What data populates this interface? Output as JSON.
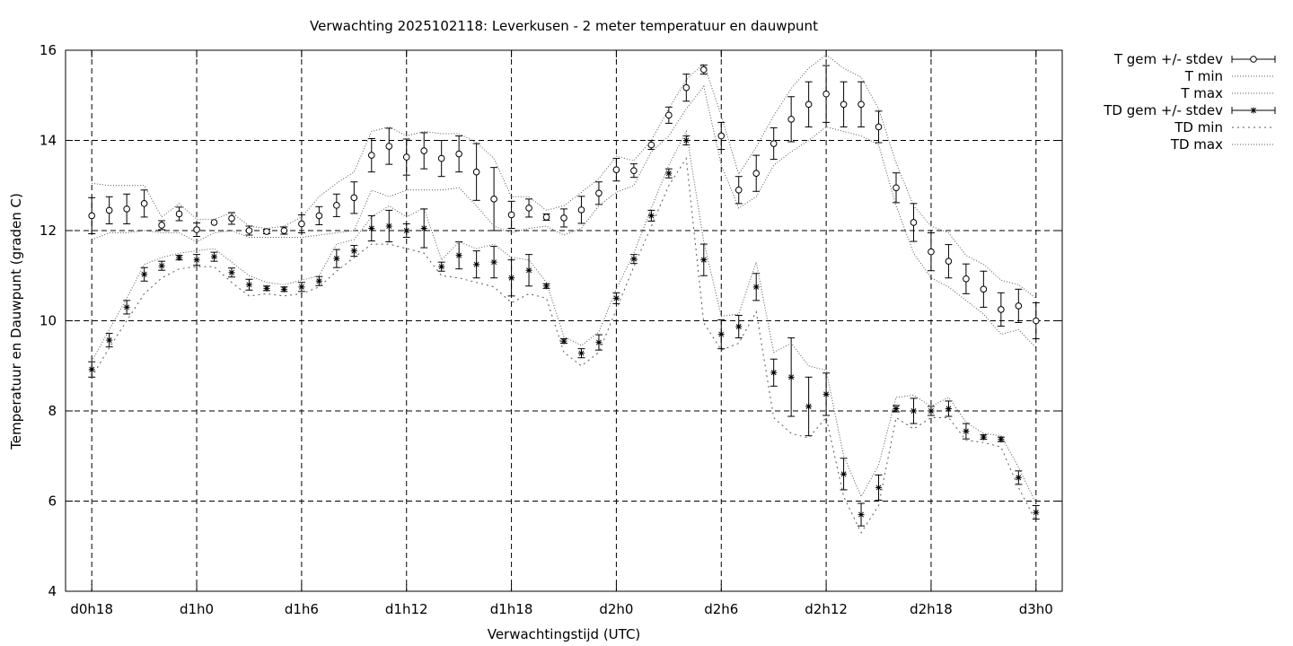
{
  "chart_data": {
    "type": "line",
    "title": "Verwachting 2025102118: Leverkusen - 2 meter temperatuur en dauwpunt",
    "xlabel": "Verwachtingstijd (UTC)",
    "ylabel": "Temperatuur en Dauwpunt (graden C)",
    "xlim": [
      -1.5,
      55.5
    ],
    "ylim": [
      4,
      16
    ],
    "grid": true,
    "legend_position": "outside-right",
    "x_tick_labels": [
      {
        "x": 0,
        "label": "d0h18"
      },
      {
        "x": 6,
        "label": "d1h0"
      },
      {
        "x": 12,
        "label": "d1h6"
      },
      {
        "x": 18,
        "label": "d1h12"
      },
      {
        "x": 24,
        "label": "d1h18"
      },
      {
        "x": 30,
        "label": "d2h0"
      },
      {
        "x": 36,
        "label": "d2h6"
      },
      {
        "x": 42,
        "label": "d2h12"
      },
      {
        "x": 48,
        "label": "d2h18"
      },
      {
        "x": 54,
        "label": "d3h0"
      }
    ],
    "y_ticks": [
      4,
      6,
      8,
      10,
      12,
      14,
      16
    ],
    "y_tick_labels": [
      "4",
      "6",
      "8",
      "10",
      "12",
      "14",
      "16"
    ],
    "x": [
      0,
      1,
      2,
      3,
      4,
      5,
      6,
      7,
      8,
      9,
      10,
      11,
      12,
      13,
      14,
      15,
      16,
      17,
      18,
      19,
      20,
      21,
      22,
      23,
      24,
      25,
      26,
      27,
      28,
      29,
      30,
      31,
      32,
      33,
      34,
      35,
      36,
      37,
      38,
      39,
      40,
      41,
      42,
      43,
      44,
      45,
      46,
      47,
      48,
      49,
      50,
      51,
      52,
      53,
      54
    ],
    "series": [
      {
        "name": "T gem +/- stdev",
        "style": "errorbars",
        "marker": "circle",
        "mean": [
          12.33,
          12.45,
          12.48,
          12.6,
          12.12,
          12.37,
          12.02,
          12.18,
          12.27,
          12.0,
          11.98,
          12.0,
          12.15,
          12.33,
          12.56,
          12.73,
          13.67,
          13.87,
          13.63,
          13.77,
          13.6,
          13.7,
          13.3,
          12.7,
          12.35,
          12.5,
          12.3,
          12.28,
          12.46,
          12.83,
          13.35,
          13.33,
          13.9,
          14.56,
          15.17,
          15.57,
          14.1,
          12.9,
          13.27,
          13.93,
          14.47,
          14.8,
          15.03,
          14.8,
          14.8,
          14.3,
          12.95,
          12.18,
          11.53,
          11.32,
          10.93,
          10.7,
          10.25,
          10.33,
          10.0
        ],
        "stdev": [
          0.4,
          0.3,
          0.33,
          0.3,
          0.1,
          0.15,
          0.15,
          0,
          0.13,
          0.1,
          0.05,
          0.08,
          0.2,
          0.2,
          0.25,
          0.35,
          0.37,
          0.4,
          0.4,
          0.4,
          0.4,
          0.4,
          0.63,
          0.7,
          0.3,
          0.2,
          0.07,
          0.2,
          0.3,
          0.25,
          0.25,
          0.15,
          0.1,
          0.18,
          0.3,
          0.1,
          0.3,
          0.3,
          0.4,
          0.35,
          0.5,
          0.5,
          0.63,
          0.5,
          0.5,
          0.35,
          0.33,
          0.42,
          0.42,
          0.37,
          0.33,
          0.4,
          0.37,
          0.37,
          0.4
        ]
      },
      {
        "name": "T min",
        "style": "dotted",
        "values": [
          11.8,
          11.95,
          11.95,
          12.0,
          11.95,
          11.95,
          11.75,
          11.95,
          12.0,
          11.85,
          11.85,
          11.85,
          11.85,
          11.9,
          11.95,
          12.0,
          12.9,
          12.75,
          12.9,
          12.9,
          12.9,
          12.95,
          12.55,
          12.1,
          11.95,
          12.05,
          12.1,
          11.9,
          12.05,
          12.55,
          12.85,
          13.0,
          13.75,
          14.1,
          14.7,
          15.2,
          13.45,
          12.5,
          12.75,
          13.45,
          13.75,
          14.0,
          14.3,
          14.2,
          14.1,
          13.9,
          12.55,
          11.5,
          10.95,
          10.75,
          10.45,
          10.15,
          9.7,
          9.8,
          9.4
        ]
      },
      {
        "name": "T max",
        "style": "dotted",
        "values": [
          13.05,
          13.0,
          13.0,
          13.0,
          12.3,
          12.6,
          12.25,
          12.25,
          12.4,
          12.1,
          12.05,
          12.1,
          12.3,
          12.75,
          13.05,
          13.3,
          14.2,
          14.3,
          14.1,
          14.2,
          14.15,
          14.15,
          13.95,
          13.6,
          12.75,
          12.75,
          12.45,
          12.55,
          12.85,
          13.15,
          13.65,
          13.55,
          14.0,
          14.7,
          15.35,
          15.7,
          14.55,
          13.25,
          13.85,
          14.55,
          15.15,
          15.6,
          15.9,
          15.6,
          15.4,
          14.7,
          13.5,
          12.55,
          12.1,
          11.95,
          11.45,
          11.25,
          10.9,
          10.8,
          10.5
        ]
      },
      {
        "name": "TD gem +/- stdev",
        "style": "errorbars",
        "marker": "star",
        "mean": [
          8.92,
          9.57,
          10.3,
          11.03,
          11.22,
          11.4,
          11.35,
          11.42,
          11.07,
          10.8,
          10.72,
          10.7,
          10.75,
          10.88,
          11.38,
          11.55,
          12.05,
          12.1,
          12.0,
          12.05,
          11.2,
          11.45,
          11.25,
          11.3,
          10.95,
          11.12,
          10.77,
          9.55,
          9.28,
          9.52,
          10.5,
          11.37,
          12.33,
          13.27,
          14.0,
          11.35,
          9.7,
          9.87,
          10.75,
          8.85,
          8.75,
          8.1,
          8.37,
          6.6,
          5.7,
          6.3,
          8.05,
          8.0,
          8.0,
          8.05,
          7.55,
          7.42,
          7.37,
          6.52,
          5.75
        ],
        "stdev": [
          0.17,
          0.15,
          0.15,
          0.15,
          0.1,
          0.05,
          0.12,
          0.1,
          0.1,
          0.12,
          0.05,
          0.05,
          0.1,
          0.1,
          0.2,
          0.12,
          0.28,
          0.35,
          0.15,
          0.43,
          0.1,
          0.3,
          0.3,
          0.35,
          0.4,
          0.35,
          0.05,
          0.05,
          0.1,
          0.17,
          0.12,
          0.1,
          0.12,
          0.1,
          0.1,
          0.35,
          0.32,
          0.25,
          0.3,
          0.3,
          0.87,
          0.65,
          0.47,
          0.35,
          0.25,
          0.28,
          0.07,
          0.28,
          0.1,
          0.17,
          0.17,
          0.05,
          0.05,
          0.15,
          0.15
        ]
      },
      {
        "name": "TD min",
        "style": "dotted",
        "values": [
          8.75,
          9.4,
          10.0,
          10.6,
          10.95,
          11.15,
          11.2,
          11.2,
          10.85,
          10.55,
          10.6,
          10.55,
          10.6,
          10.75,
          11.1,
          11.4,
          11.7,
          11.7,
          11.6,
          11.5,
          11.0,
          10.95,
          10.85,
          10.75,
          10.4,
          10.6,
          10.5,
          9.3,
          9.0,
          9.3,
          10.25,
          11.2,
          12.1,
          13.0,
          13.6,
          9.95,
          9.35,
          9.5,
          10.2,
          7.85,
          7.5,
          7.4,
          7.85,
          6.1,
          5.3,
          5.9,
          7.85,
          7.6,
          7.85,
          7.85,
          7.35,
          7.3,
          7.2,
          6.3,
          5.55
        ],
        "dash": "2,4"
      },
      {
        "name": "TD max",
        "style": "dotted",
        "values": [
          9.1,
          9.8,
          10.5,
          11.25,
          11.4,
          11.5,
          11.55,
          11.6,
          11.3,
          11.0,
          10.85,
          10.8,
          10.9,
          11.0,
          11.7,
          11.8,
          12.3,
          12.55,
          12.3,
          12.5,
          11.35,
          11.75,
          11.6,
          11.7,
          11.4,
          11.35,
          10.85,
          9.65,
          9.45,
          9.75,
          10.7,
          11.5,
          12.5,
          13.45,
          14.2,
          11.75,
          10.1,
          10.15,
          11.3,
          9.3,
          9.5,
          9.0,
          8.9,
          7.0,
          6.1,
          6.8,
          8.3,
          8.35,
          8.1,
          8.3,
          7.75,
          7.5,
          7.45,
          6.75,
          5.95
        ],
        "dash": "1,2"
      }
    ]
  }
}
